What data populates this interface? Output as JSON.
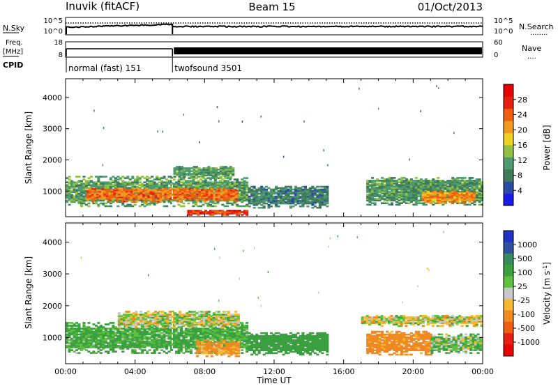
{
  "header": {
    "station": "Inuvik (fitACF)",
    "beam": "Beam 15",
    "date": "01/Oct/2013"
  },
  "aux_panels": {
    "nsky": {
      "label": "N.Sky",
      "ticks": [
        "10^5",
        "10^0"
      ],
      "right_label": "N.Search",
      "right_ticks": [
        "10^5",
        "10^0"
      ],
      "right_line": "........"
    },
    "freq": {
      "label_line1": "Freq.",
      "label_line2": "[MHz]",
      "ticks": [
        "18",
        "8"
      ],
      "right_label": "Nave",
      "right_ticks": [
        "60",
        "0"
      ],
      "right_line": "....",
      "cpid_label": "CPID"
    },
    "cpid_modes": [
      {
        "name": "normal (fast) 151",
        "start_hour": 0,
        "end_hour": 6.15
      },
      {
        "name": "twofsound 3501",
        "start_hour": 6.15,
        "end_hour": 24
      }
    ]
  },
  "colorbars": {
    "power": {
      "label": "Power [dB]",
      "ticks": [
        "4",
        "8",
        "12",
        "16",
        "20",
        "24",
        "28"
      ],
      "tick_values": [
        4,
        8,
        12,
        16,
        20,
        24,
        28
      ],
      "range": [
        0,
        32
      ],
      "colors": [
        "#1a1ae6",
        "#2a4aa8",
        "#3f7a5a",
        "#4f9a70",
        "#8fc040",
        "#f0d020",
        "#f09a20",
        "#ee6010",
        "#e62010",
        "#e60000"
      ]
    },
    "velocity": {
      "label_main": "Velocity [m s",
      "label_sup": "-1",
      "label_close": "]",
      "ticks": [
        "1000",
        "500",
        "100",
        "25",
        "-25",
        "-100",
        "-500",
        "-1000"
      ],
      "colors": [
        "#2030c0",
        "#3050a0",
        "#3a8a60",
        "#3aa040",
        "#60c040",
        "#c8c8c8",
        "#f5b830",
        "#f08a20",
        "#ee6010",
        "#e62010",
        "#e60000"
      ]
    }
  },
  "chart_data": [
    {
      "type": "heatmap",
      "title": "Power",
      "xlabel": "",
      "ylabel": "Slant Range [km]",
      "xlim": [
        0,
        24
      ],
      "ylim": [
        180,
        4600
      ],
      "y_ticks": [
        1000,
        2000,
        3000,
        4000
      ],
      "grid": false,
      "regions": [
        {
          "t0": 0.0,
          "t1": 10.5,
          "r0": 500,
          "r1": 1450,
          "level": 11
        },
        {
          "t0": 1.2,
          "t1": 9.8,
          "r0": 650,
          "r1": 1100,
          "level": 24
        },
        {
          "t0": 6.2,
          "t1": 9.6,
          "r0": 1400,
          "r1": 1800,
          "level": 10
        },
        {
          "t0": 7.0,
          "t1": 10.5,
          "r0": 220,
          "r1": 380,
          "level": 27
        },
        {
          "t0": 10.5,
          "t1": 15.0,
          "r0": 450,
          "r1": 1150,
          "level": 8
        },
        {
          "t0": 17.3,
          "t1": 23.9,
          "r0": 550,
          "r1": 1450,
          "level": 10
        },
        {
          "t0": 20.5,
          "t1": 23.5,
          "r0": 600,
          "r1": 1000,
          "level": 22
        }
      ]
    },
    {
      "type": "heatmap",
      "title": "Velocity",
      "xlabel": "Time UT",
      "ylabel": "Slant Range [km]",
      "xlim": [
        0,
        24
      ],
      "ylim": [
        180,
        4600
      ],
      "y_ticks": [
        1000,
        2000,
        3000,
        4000
      ],
      "x_ticks": [
        "00:00",
        "04:00",
        "08:00",
        "12:00",
        "16:00",
        "20:00",
        "00:00"
      ],
      "x_tick_hours": [
        0,
        4,
        8,
        12,
        16,
        20,
        24
      ],
      "grid": false,
      "regions": [
        {
          "t0": 0.0,
          "t1": 10.5,
          "r0": 500,
          "r1": 1450,
          "velocity": 150
        },
        {
          "t0": 3.0,
          "t1": 10.0,
          "r0": 1300,
          "r1": 1800,
          "velocity": 0
        },
        {
          "t0": 7.5,
          "t1": 10.0,
          "r0": 400,
          "r1": 900,
          "velocity": -150
        },
        {
          "t0": 10.5,
          "t1": 15.0,
          "r0": 450,
          "r1": 1150,
          "velocity": 300
        },
        {
          "t0": 17.0,
          "t1": 23.9,
          "r0": 1350,
          "r1": 1700,
          "velocity": 0
        },
        {
          "t0": 17.3,
          "t1": 21.0,
          "r0": 450,
          "r1": 1200,
          "velocity": -200
        },
        {
          "t0": 21.0,
          "t1": 23.9,
          "r0": 500,
          "r1": 1100,
          "velocity": 80
        }
      ]
    }
  ]
}
